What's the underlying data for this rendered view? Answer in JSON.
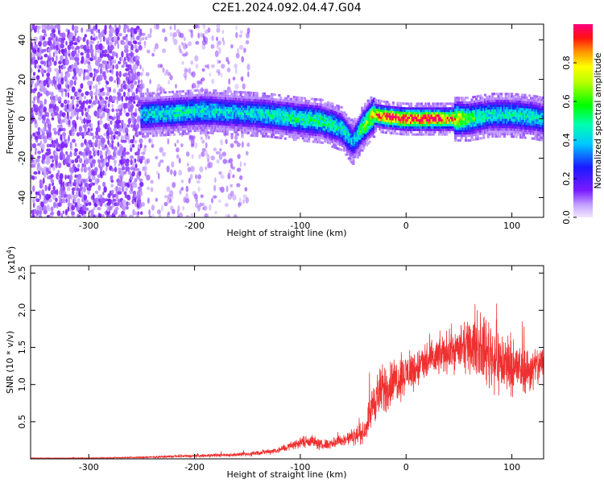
{
  "chart_data": [
    {
      "type": "heatmap",
      "title": "C2E1.2024.092.04.47.G04",
      "xlabel": "Height of straight line (km)",
      "ylabel": "Frequency (Hz)",
      "xlim": [
        -355,
        130
      ],
      "ylim": [
        -50,
        48
      ],
      "xticks": [
        -300,
        -200,
        -100,
        0,
        100
      ],
      "yticks": [
        -40,
        -20,
        0,
        20,
        40
      ],
      "x_tick_labels": [
        "-300",
        "-200",
        "-100",
        "0",
        "100"
      ],
      "y_tick_labels": [
        "-40",
        "-20",
        "0",
        "20",
        "40"
      ],
      "grid": false,
      "colorbar": {
        "label": "Normalized spectral amplitude",
        "range": [
          0.0,
          1.0
        ],
        "ticks": [
          0.0,
          0.2,
          0.4,
          0.6,
          0.8
        ],
        "tick_labels": [
          "0.0",
          "0.2",
          "0.4",
          "0.6",
          "0.8"
        ],
        "colormap": "rainbow (purple → blue → cyan → green → yellow → orange → red → magenta)"
      },
      "ridge": {
        "description": "central frequency of the signal band vs height",
        "x": [
          -250,
          -220,
          -190,
          -160,
          -130,
          -100,
          -80,
          -60,
          -50,
          -40,
          -30,
          -20,
          0,
          20,
          40,
          60,
          80,
          100,
          120,
          130
        ],
        "center_hz": [
          2,
          3,
          4,
          3,
          2,
          0,
          -1,
          -5,
          -12,
          -4,
          2,
          1,
          0,
          0,
          0,
          0,
          2,
          2,
          1,
          0
        ],
        "peak_amplitude": [
          0.4,
          0.45,
          0.45,
          0.4,
          0.45,
          0.5,
          0.5,
          0.45,
          0.4,
          0.6,
          0.8,
          0.95,
          0.97,
          0.97,
          0.9,
          0.55,
          0.45,
          0.45,
          0.45,
          0.4
        ]
      },
      "noise_region": {
        "description": "broadband low-amplitude noise at all frequencies",
        "x_range": [
          -355,
          -250
        ],
        "sparse_noise_x_range": [
          -250,
          -150
        ],
        "amplitude_range": [
          0.05,
          0.15
        ]
      }
    },
    {
      "type": "line",
      "xlabel": "Height of straight line (km)",
      "ylabel": "SNR (10 * v/v)",
      "y_multiplier_label": "(x10",
      "y_multiplier_exponent": "4",
      "y_multiplier_close": ")",
      "xlim": [
        -355,
        130
      ],
      "ylim": [
        0,
        2.6
      ],
      "xticks": [
        -300,
        -200,
        -100,
        0,
        100
      ],
      "yticks": [
        0.5,
        1.0,
        1.5,
        2.0,
        2.5
      ],
      "x_tick_labels": [
        "-300",
        "-200",
        "-100",
        "0",
        "100"
      ],
      "y_tick_labels": [
        "0.5",
        "1.0",
        "1.5",
        "2.0",
        "2.5"
      ],
      "grid": false,
      "color": "#ef3030",
      "series": [
        {
          "x": [
            -355,
            -300,
            -250,
            -200,
            -150,
            -120,
            -100,
            -90,
            -80,
            -60,
            -40,
            -30,
            -20,
            -10,
            0,
            20,
            40,
            60,
            70,
            80,
            90,
            100,
            110,
            120,
            130
          ],
          "y": [
            0.01,
            0.01,
            0.02,
            0.04,
            0.06,
            0.12,
            0.22,
            0.25,
            0.18,
            0.25,
            0.35,
            0.8,
            0.95,
            1.05,
            1.15,
            1.3,
            1.45,
            1.5,
            1.5,
            1.4,
            1.3,
            1.25,
            1.2,
            1.2,
            1.3
          ],
          "noise_amplitude": [
            0.005,
            0.005,
            0.01,
            0.02,
            0.03,
            0.05,
            0.08,
            0.1,
            0.08,
            0.1,
            0.15,
            0.35,
            0.4,
            0.35,
            0.3,
            0.3,
            0.3,
            0.35,
            0.45,
            0.55,
            0.5,
            0.45,
            0.35,
            0.35,
            0.3
          ]
        }
      ]
    }
  ]
}
